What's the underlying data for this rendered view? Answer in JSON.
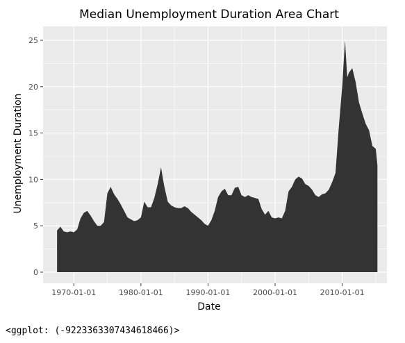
{
  "chart_data": {
    "type": "area",
    "title": "Median Unemployment Duration Area Chart",
    "xlabel": "Date",
    "ylabel": "Unemployment Duration",
    "x_ticks": [
      "1970-01-01",
      "1980-01-01",
      "1990-01-01",
      "2000-01-01",
      "2010-01-01"
    ],
    "y_ticks": [
      "0",
      "5",
      "10",
      "15",
      "20",
      "25"
    ],
    "xlim": [
      "1965-06-01",
      "2016-09-01"
    ],
    "ylim": [
      -1.2,
      26.5
    ],
    "grid": true,
    "panel_color": "#EBEBEB",
    "fill_color": "#333333",
    "series": [
      {
        "x": [
          "1967-07-01",
          "1968-01-01",
          "1968-07-01",
          "1969-01-01",
          "1969-07-01",
          "1970-01-01",
          "1970-07-01",
          "1971-01-01",
          "1971-07-01",
          "1972-01-01",
          "1972-07-01",
          "1973-01-01",
          "1973-07-01",
          "1974-01-01",
          "1974-07-01",
          "1975-01-01",
          "1975-07-01",
          "1976-01-01",
          "1976-07-01",
          "1977-01-01",
          "1977-07-01",
          "1978-01-01",
          "1978-07-01",
          "1979-01-01",
          "1979-07-01",
          "1980-01-01",
          "1980-07-01",
          "1981-01-01",
          "1981-07-01",
          "1982-01-01",
          "1982-07-01",
          "1983-01-01",
          "1983-04-01",
          "1983-07-01",
          "1984-01-01",
          "1984-07-01",
          "1985-01-01",
          "1985-07-01",
          "1986-01-01",
          "1986-07-01",
          "1987-01-01",
          "1987-07-01",
          "1988-01-01",
          "1988-07-01",
          "1989-01-01",
          "1989-07-01",
          "1990-01-01",
          "1990-07-01",
          "1991-01-01",
          "1991-07-01",
          "1992-01-01",
          "1992-07-01",
          "1993-01-01",
          "1993-07-01",
          "1994-01-01",
          "1994-07-01",
          "1995-01-01",
          "1995-07-01",
          "1996-01-01",
          "1996-07-01",
          "1997-01-01",
          "1997-07-01",
          "1998-01-01",
          "1998-07-01",
          "1999-01-01",
          "1999-07-01",
          "2000-01-01",
          "2000-07-01",
          "2001-01-01",
          "2001-07-01",
          "2002-01-01",
          "2002-07-01",
          "2003-01-01",
          "2003-07-01",
          "2004-01-01",
          "2004-07-01",
          "2005-01-01",
          "2005-07-01",
          "2006-01-01",
          "2006-07-01",
          "2007-01-01",
          "2007-07-01",
          "2008-01-01",
          "2008-07-01",
          "2009-01-01",
          "2009-07-01",
          "2010-01-01",
          "2010-06-01",
          "2010-10-01",
          "2011-01-01",
          "2011-07-01",
          "2012-01-01",
          "2012-07-01",
          "2013-01-01",
          "2013-07-01",
          "2014-01-01",
          "2014-07-01",
          "2015-01-01",
          "2015-04-01"
        ],
        "values": [
          4.5,
          4.9,
          4.4,
          4.3,
          4.4,
          4.3,
          4.6,
          5.8,
          6.4,
          6.6,
          6.1,
          5.5,
          5.0,
          5.0,
          5.4,
          8.5,
          9.2,
          8.4,
          7.9,
          7.3,
          6.6,
          5.9,
          5.7,
          5.5,
          5.6,
          5.9,
          7.6,
          7.0,
          7.0,
          8.0,
          9.5,
          11.3,
          10.2,
          9.2,
          7.6,
          7.2,
          7.0,
          6.9,
          6.9,
          7.1,
          6.9,
          6.5,
          6.2,
          5.9,
          5.6,
          5.2,
          5.0,
          5.6,
          6.6,
          8.1,
          8.7,
          9.0,
          8.3,
          8.3,
          9.1,
          9.2,
          8.3,
          8.1,
          8.3,
          8.1,
          8.0,
          7.9,
          6.8,
          6.2,
          6.6,
          5.9,
          5.8,
          5.9,
          5.8,
          6.6,
          8.7,
          9.2,
          10.0,
          10.3,
          10.1,
          9.5,
          9.3,
          8.9,
          8.3,
          8.1,
          8.4,
          8.5,
          8.9,
          9.7,
          10.7,
          15.7,
          20.0,
          25.0,
          21.0,
          21.5,
          22.0,
          20.5,
          18.3,
          17.1,
          16.0,
          15.3,
          13.6,
          13.3,
          11.5
        ]
      }
    ]
  },
  "output_repr": "<ggplot: (-9223363307434618466)>"
}
